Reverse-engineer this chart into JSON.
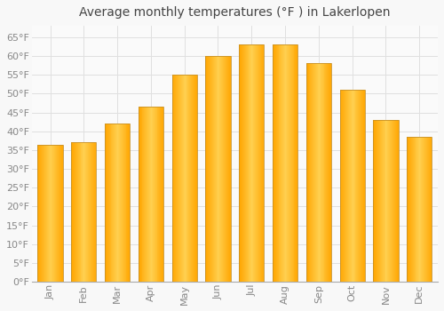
{
  "title": "Average monthly temperatures (°F ) in Lakerlopen",
  "months": [
    "Jan",
    "Feb",
    "Mar",
    "Apr",
    "May",
    "Jun",
    "Jul",
    "Aug",
    "Sep",
    "Oct",
    "Nov",
    "Dec"
  ],
  "values": [
    36.5,
    37.0,
    42.0,
    46.5,
    55.0,
    60.0,
    63.0,
    63.0,
    58.0,
    51.0,
    43.0,
    38.5
  ],
  "bar_color_left": "#FFA500",
  "bar_color_center": "#FFD040",
  "bar_color_right": "#FFA500",
  "bar_edge_color": "#C8922A",
  "background_color": "#F8F8F8",
  "plot_bg_color": "#FAFAFA",
  "grid_color": "#E0E0E0",
  "yticks": [
    0,
    5,
    10,
    15,
    20,
    25,
    30,
    35,
    40,
    45,
    50,
    55,
    60,
    65
  ],
  "ylim": [
    0,
    68
  ],
  "title_fontsize": 10,
  "tick_fontsize": 8,
  "tick_color": "#888888",
  "title_color": "#444444",
  "font_family": "DejaVu Sans"
}
